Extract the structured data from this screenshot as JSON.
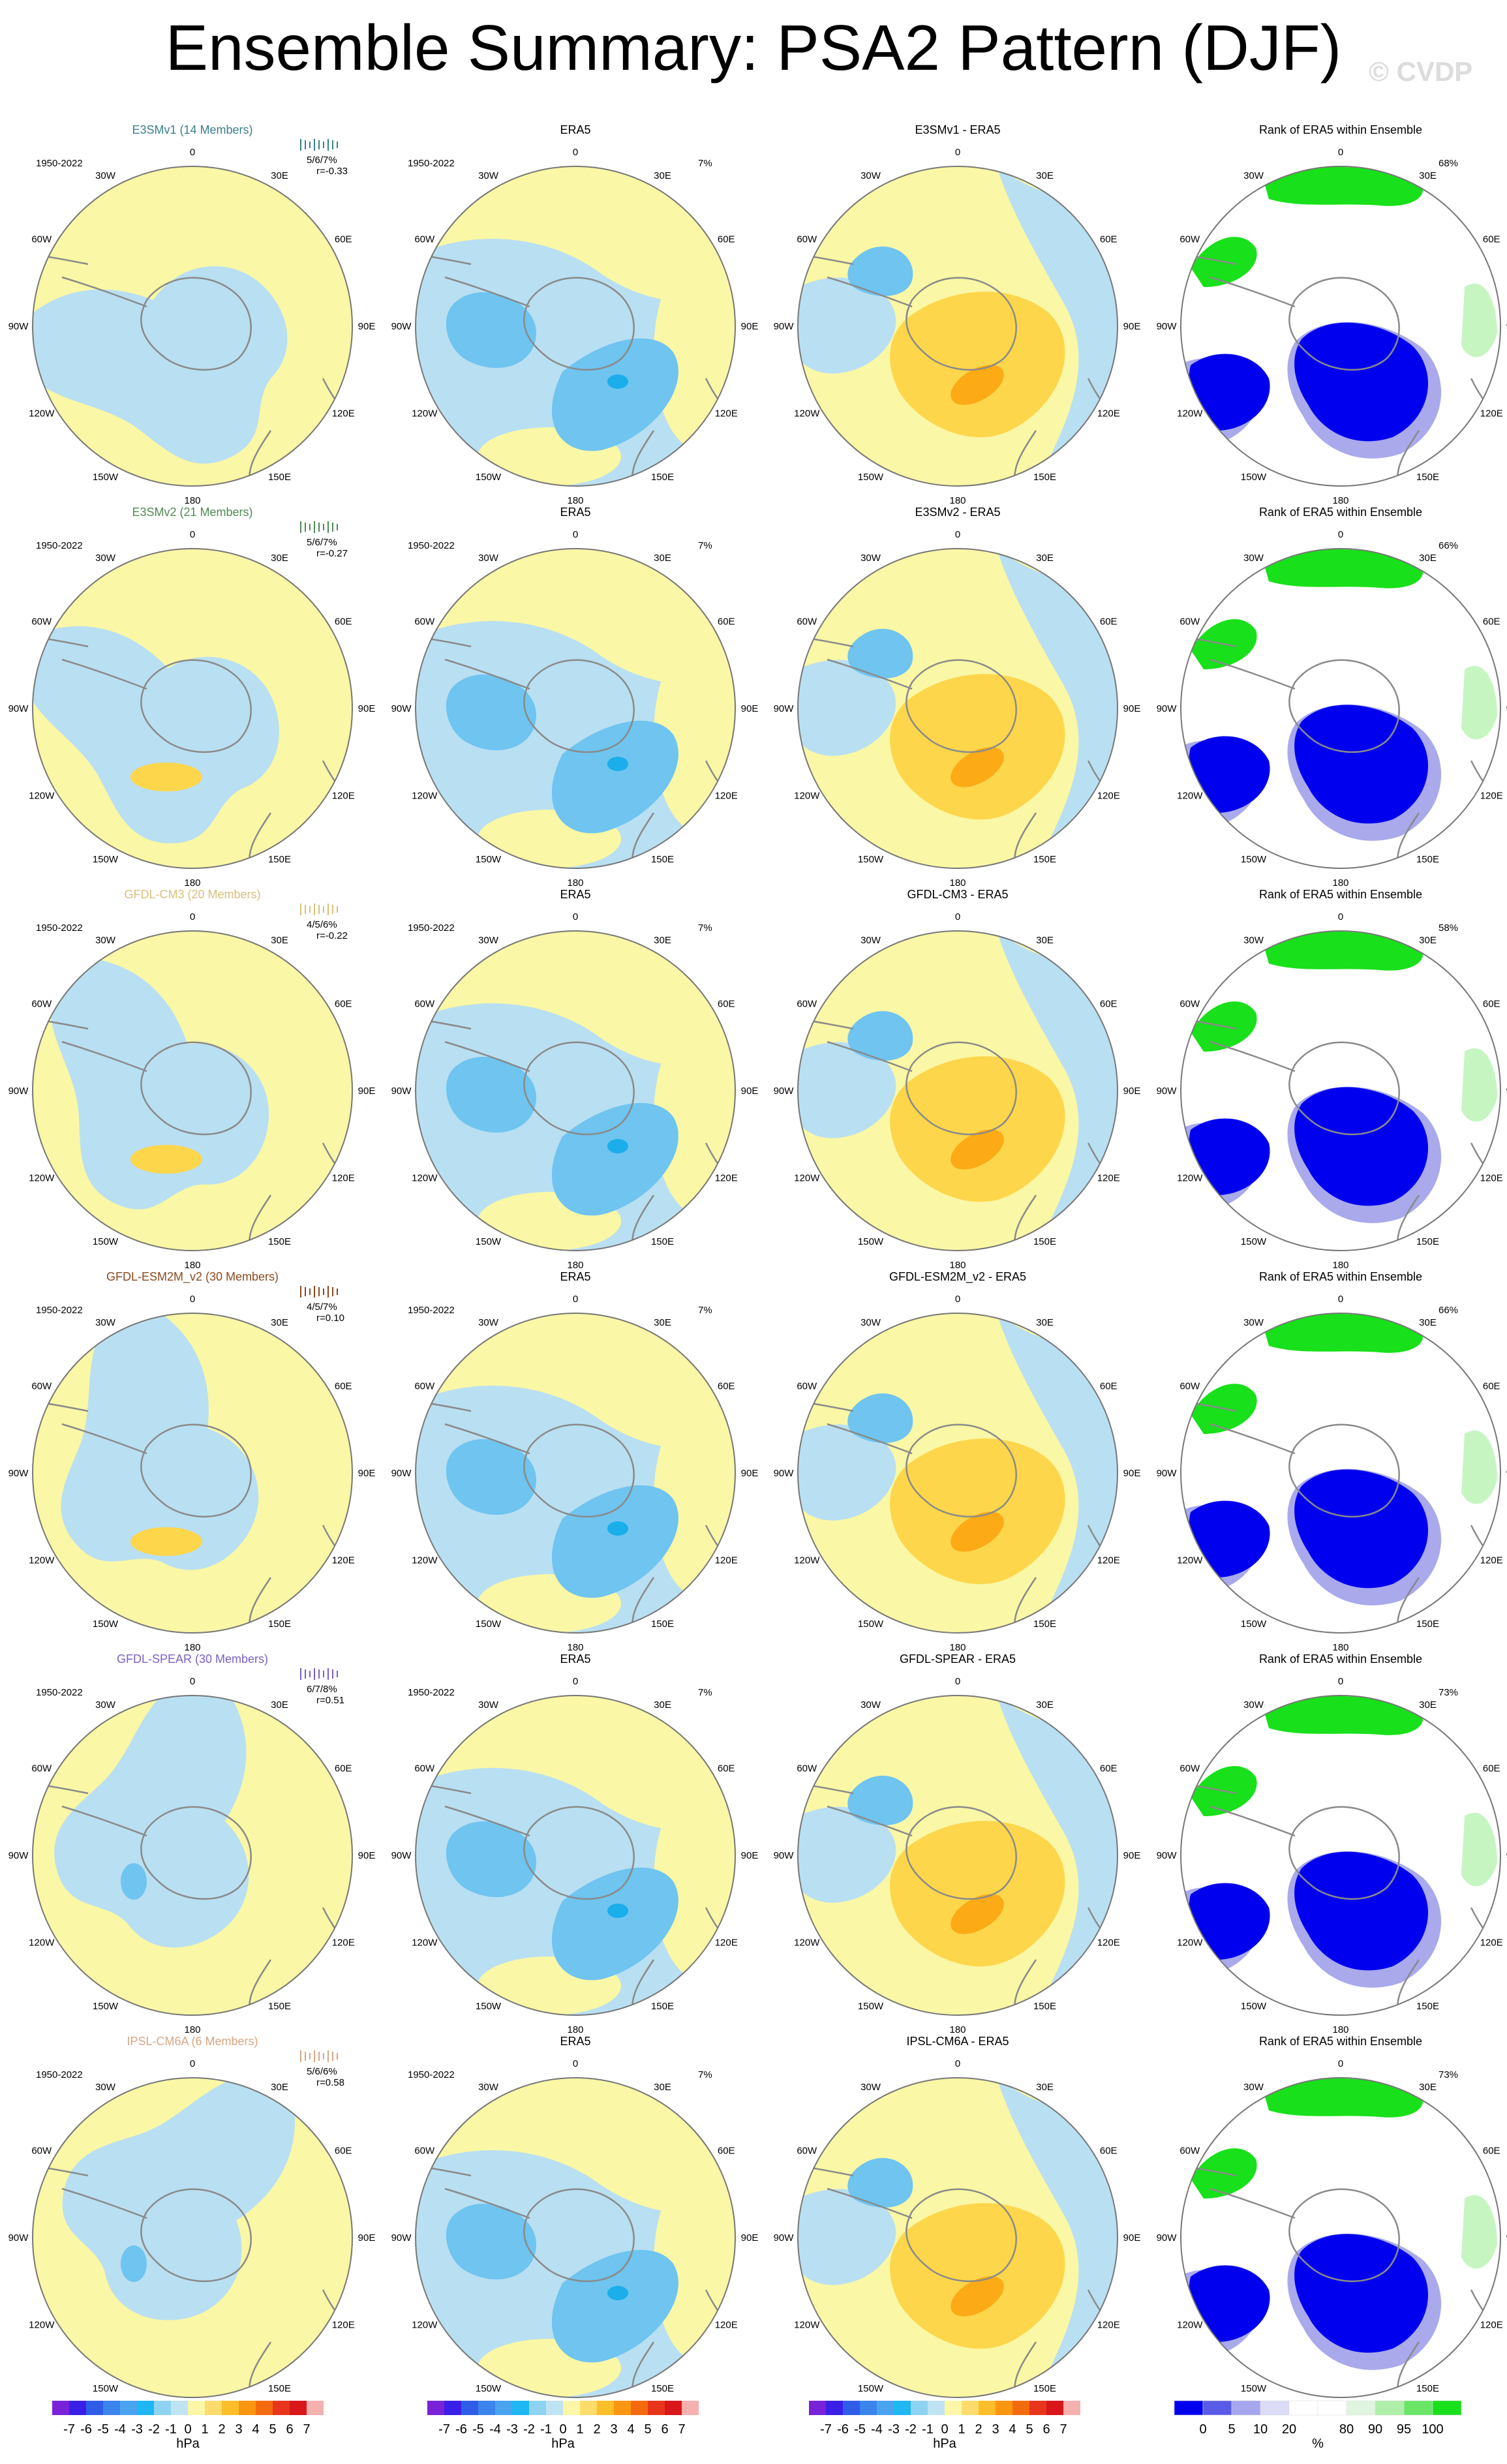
{
  "title": "Ensemble Summary: PSA2 Pattern (DJF)",
  "copyright": "© CVDP",
  "period": "1950-2022",
  "lon_labels": [
    "0",
    "30E",
    "60E",
    "90E",
    "120E",
    "150E",
    "180",
    "150W",
    "120W",
    "90W",
    "60W",
    "30W"
  ],
  "columns": [
    "model",
    "ERA5",
    "difference",
    "rank"
  ],
  "rows": [
    {
      "model_title": "E3SMv1 (14 Members)",
      "model_color": "#3a7f8e",
      "stats": "5/6/7%",
      "corr": "r=-0.33",
      "obs_title": "ERA5",
      "obs_pct": "7%",
      "diff_title": "E3SMv1 - ERA5",
      "rank_title": "Rank of ERA5 within Ensemble",
      "rank_pct": "68%"
    },
    {
      "model_title": "E3SMv2 (21 Members)",
      "model_color": "#4f8a52",
      "stats": "5/6/7%",
      "corr": "r=-0.27",
      "obs_title": "ERA5",
      "obs_pct": "7%",
      "diff_title": "E3SMv2 - ERA5",
      "rank_title": "Rank of ERA5 within Ensemble",
      "rank_pct": "66%"
    },
    {
      "model_title": "GFDL-CM3 (20 Members)",
      "model_color": "#d8c07a",
      "stats": "4/5/6%",
      "corr": "r=-0.22",
      "obs_title": "ERA5",
      "obs_pct": "7%",
      "diff_title": "GFDL-CM3 - ERA5",
      "rank_title": "Rank of ERA5 within Ensemble",
      "rank_pct": "58%"
    },
    {
      "model_title": "GFDL-ESM2M_v2 (30 Members)",
      "model_color": "#8a4a20",
      "stats": "4/5/7%",
      "corr": "r=0.10",
      "obs_title": "ERA5",
      "obs_pct": "7%",
      "diff_title": "GFDL-ESM2M_v2 - ERA5",
      "rank_title": "Rank of ERA5 within Ensemble",
      "rank_pct": "66%"
    },
    {
      "model_title": "GFDL-SPEAR (30 Members)",
      "model_color": "#7b5fc4",
      "stats": "6/7/8%",
      "corr": "r=0.51",
      "obs_title": "ERA5",
      "obs_pct": "7%",
      "diff_title": "GFDL-SPEAR - ERA5",
      "rank_title": "Rank of ERA5 within Ensemble",
      "rank_pct": "73%"
    },
    {
      "model_title": "IPSL-CM6A (6 Members)",
      "model_color": "#d7a684",
      "stats": "5/6/6%",
      "corr": "r=0.58",
      "obs_title": "ERA5",
      "obs_pct": "7%",
      "diff_title": "IPSL-CM6A - ERA5",
      "rank_title": "Rank of ERA5 within Ensemble",
      "rank_pct": "73%"
    }
  ],
  "colorbar_hpa": {
    "labels": [
      "-7",
      "-6",
      "-5",
      "-4",
      "-3",
      "-2",
      "-1",
      "0",
      "1",
      "2",
      "3",
      "4",
      "5",
      "6",
      "7"
    ],
    "unit": "hPa",
    "colors": [
      "#7a22d8",
      "#3a1fe6",
      "#2f5de8",
      "#3b84ec",
      "#4aa3ef",
      "#1fb7f2",
      "#8fd3f2",
      "#bfe3f2",
      "#fbf6a8",
      "#fddc6c",
      "#fcbe2a",
      "#fb9613",
      "#f46a0f",
      "#e8361c",
      "#d9161a",
      "#f6b0ae"
    ]
  },
  "colorbar_rank": {
    "labels": [
      "0",
      "5",
      "10",
      "20",
      "80",
      "90",
      "95",
      "100"
    ],
    "unit": "%",
    "colors": [
      "#0000ee",
      "#5a5ae8",
      "#a6a6ee",
      "#dcdcf6",
      "#ffffff",
      "#ffffff",
      "#e0f5df",
      "#b0efaa",
      "#6ae566",
      "#18e01a"
    ]
  },
  "palette": {
    "negative": "#b9dff2",
    "positive": "#faf7a6",
    "neg_mid": "#6fc4f0",
    "neg_strong": "#1aaeea",
    "pos_mid": "#fdd64c",
    "pos_strong": "#fcaa16",
    "rank_blue": "#0000ee",
    "rank_midblue": "#a9a9ec",
    "rank_green": "#18e01a",
    "rank_lightgreen": "#c6f5c2"
  }
}
